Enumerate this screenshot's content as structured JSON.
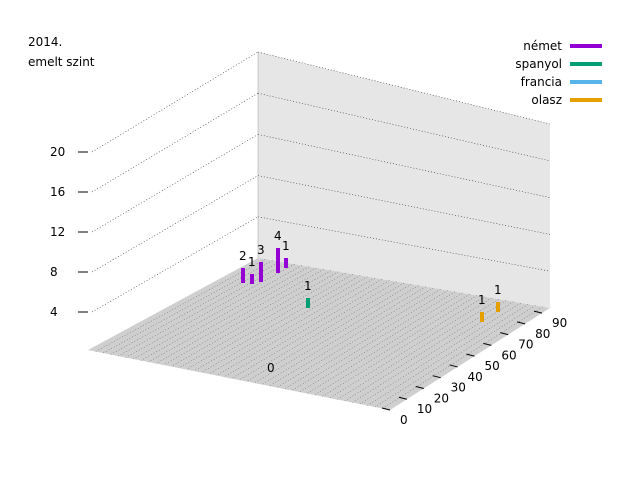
{
  "chart_data": {
    "type": "bar",
    "title_line1": "2014.",
    "title_line2": "emelt szint",
    "z_ticks": [
      "4",
      "8",
      "12",
      "16",
      "20"
    ],
    "x_ticks": [
      "0",
      "10",
      "20",
      "30",
      "40",
      "50",
      "60",
      "70",
      "80",
      "90"
    ],
    "floor_label": "0",
    "legend": [
      {
        "name": "német",
        "color": "#9400d3"
      },
      {
        "name": "spanyol",
        "color": "#009e73"
      },
      {
        "name": "francia",
        "color": "#56b4e9"
      },
      {
        "name": "olasz",
        "color": "#e69f00"
      }
    ],
    "bars": [
      {
        "series": "német",
        "value": 2,
        "label": "2"
      },
      {
        "series": "német",
        "value": 1,
        "label": "1"
      },
      {
        "series": "német",
        "value": 3,
        "label": "3"
      },
      {
        "series": "német",
        "value": 4,
        "label": "4"
      },
      {
        "series": "német",
        "value": 1,
        "label": "1"
      },
      {
        "series": "spanyol",
        "value": 1,
        "label": "1"
      },
      {
        "series": "olasz",
        "value": 1,
        "label": "1"
      },
      {
        "series": "olasz",
        "value": 1,
        "label": "1"
      }
    ]
  }
}
